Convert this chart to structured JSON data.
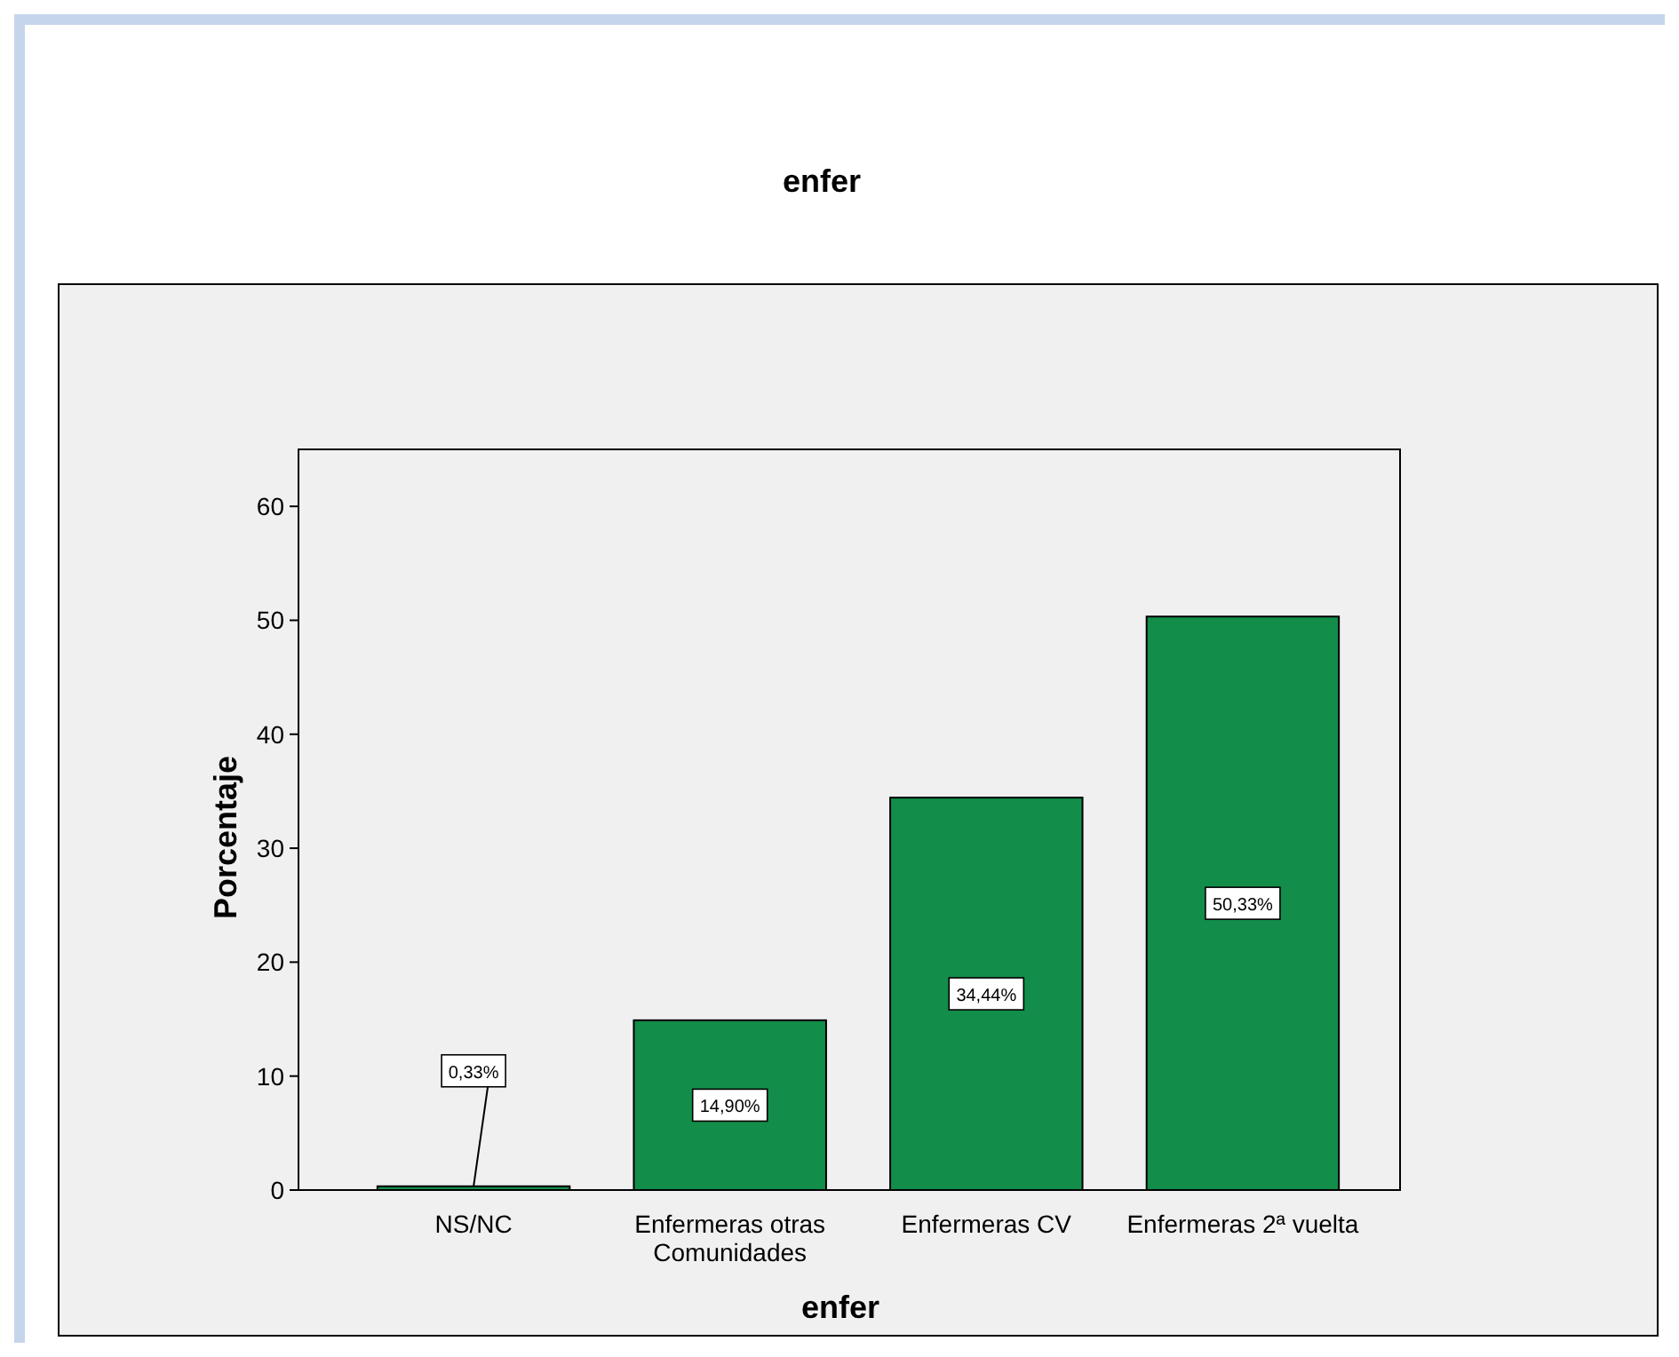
{
  "chart_data": {
    "type": "bar",
    "title": "enfer",
    "xlabel": "enfer",
    "ylabel": "Porcentaje",
    "categories": [
      "NS/NC",
      "Enfermeras otras Comunidades",
      "Enfermeras CV",
      "Enfermeras 2ª vuelta"
    ],
    "values": [
      0.33,
      14.9,
      34.44,
      50.33
    ],
    "value_labels": [
      "0,33%",
      "14,90%",
      "34,44%",
      "50,33%"
    ],
    "color": "#138d4a",
    "ylim": [
      0,
      65
    ],
    "yticks": [
      0,
      10,
      20,
      30,
      40,
      50,
      60
    ],
    "grid": false
  }
}
